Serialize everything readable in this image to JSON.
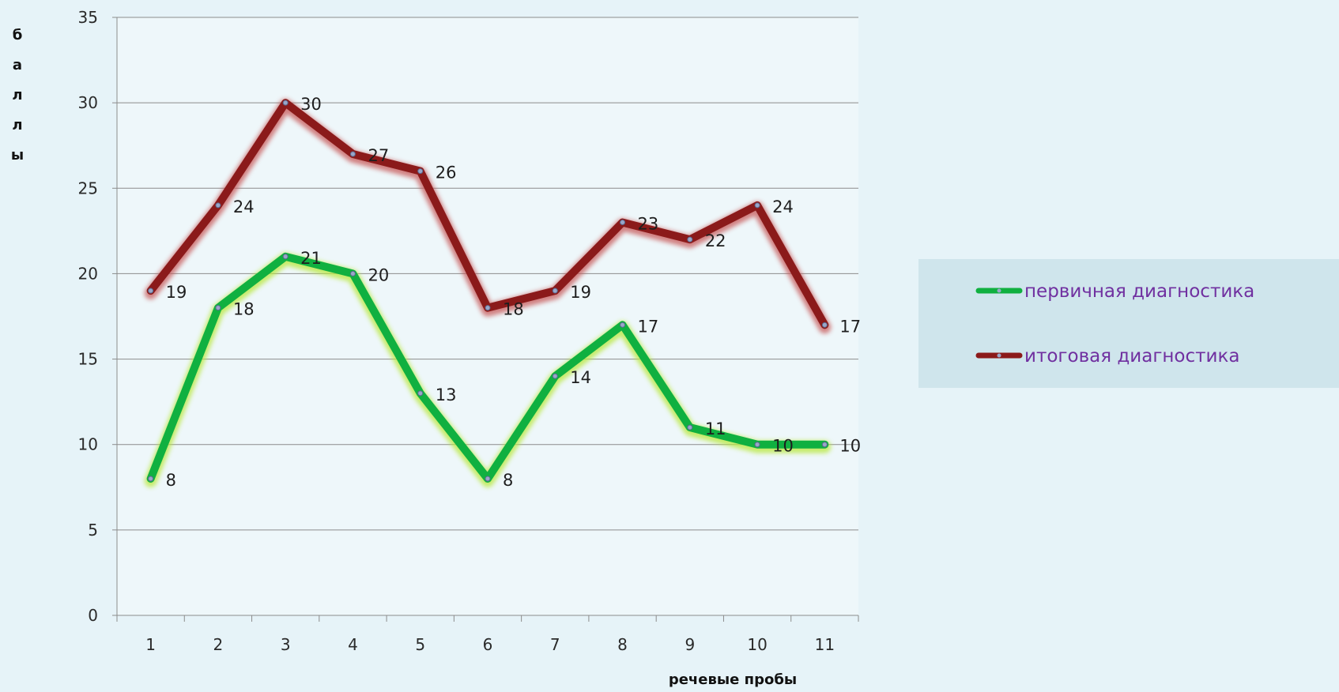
{
  "chart_data": {
    "type": "line",
    "xlabel": "речевые пробы",
    "ylabel": "баллы",
    "categories": [
      "1",
      "2",
      "3",
      "4",
      "5",
      "6",
      "7",
      "8",
      "9",
      "10",
      "11"
    ],
    "ylim": [
      0,
      35
    ],
    "yticks": [
      0,
      5,
      10,
      15,
      20,
      25,
      30,
      35
    ],
    "grid": "horizontal",
    "legend_position": "right",
    "data_labels": true,
    "series": [
      {
        "name": "первичная диагностика",
        "values": [
          8,
          18,
          21,
          20,
          13,
          8,
          14,
          17,
          11,
          10,
          10
        ],
        "color": "#10b040",
        "glow": "#b8e83a"
      },
      {
        "name": "итоговая диагностика",
        "values": [
          19,
          24,
          30,
          27,
          26,
          18,
          19,
          23,
          22,
          24,
          17
        ],
        "color": "#8b1a1a",
        "glow": "#c85a5a"
      }
    ]
  }
}
